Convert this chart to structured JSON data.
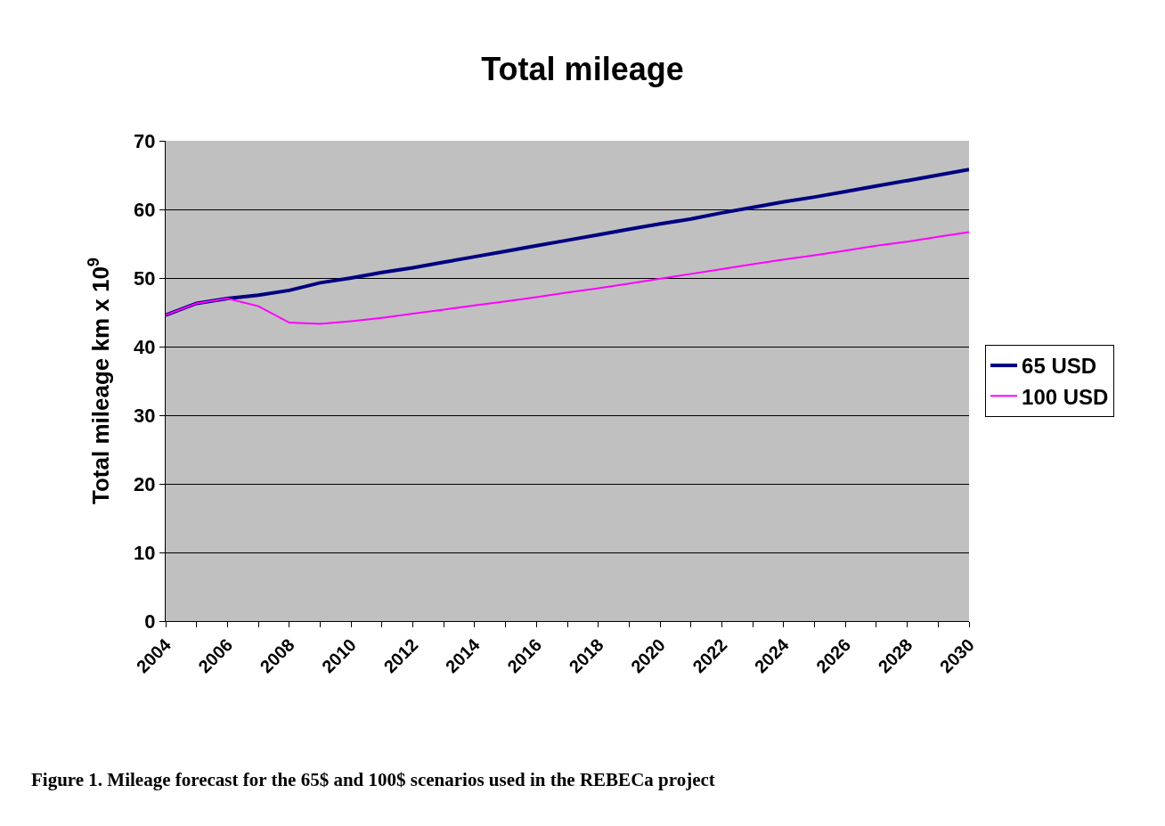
{
  "chart_data": {
    "type": "line",
    "title": "Total mileage",
    "ylabel": "Total mileage km x 10$^{9}$",
    "x": [
      2004,
      2005,
      2006,
      2007,
      2008,
      2009,
      2010,
      2011,
      2012,
      2013,
      2014,
      2015,
      2016,
      2017,
      2018,
      2019,
      2020,
      2021,
      2022,
      2023,
      2024,
      2025,
      2026,
      2027,
      2028,
      2029,
      2030
    ],
    "series": [
      {
        "name": "65 USD",
        "color": "#000080",
        "values": [
          44.6,
          46.3,
          47.0,
          47.5,
          48.2,
          49.3,
          50.0,
          50.8,
          51.5,
          52.3,
          53.1,
          53.9,
          54.7,
          55.5,
          56.3,
          57.1,
          57.9,
          58.6,
          59.5,
          60.3,
          61.1,
          61.8,
          62.6,
          63.4,
          64.2,
          65.0,
          65.8
        ]
      },
      {
        "name": "100 USD",
        "color": "#ff00ff",
        "values": [
          44.6,
          46.3,
          47.0,
          45.9,
          43.5,
          43.3,
          43.7,
          44.2,
          44.8,
          45.4,
          46.0,
          46.6,
          47.2,
          47.9,
          48.5,
          49.2,
          49.9,
          50.6,
          51.3,
          52.0,
          52.7,
          53.3,
          54.0,
          54.7,
          55.3,
          56.0,
          56.7
        ]
      }
    ],
    "xlim": [
      2004,
      2030
    ],
    "xticks": [
      2004,
      {
        "value": 2005,
        "label": null
      },
      2006,
      {
        "value": 2007,
        "label": null
      },
      2008,
      {
        "value": 2009,
        "label": null
      },
      2010,
      {
        "value": 2011,
        "label": null
      },
      2012,
      {
        "value": 2013,
        "label": null
      },
      2014,
      {
        "value": 2015,
        "label": null
      },
      2016,
      {
        "value": 2017,
        "label": null
      },
      2018,
      {
        "value": 2019,
        "label": null
      },
      2020,
      {
        "value": 2021,
        "label": null
      },
      2022,
      {
        "value": 2023,
        "label": null
      },
      2024,
      {
        "value": 2025,
        "label": null
      },
      2026,
      {
        "value": 2027,
        "label": null
      },
      2028,
      {
        "value": 2029,
        "label": null
      },
      2030
    ],
    "ylim": [
      0,
      70
    ],
    "yticks": [
      0,
      10,
      20,
      30,
      40,
      50,
      60,
      70
    ],
    "grid": "y",
    "legend": "right",
    "marker": "none",
    "line_style": "solid",
    "annotations": [
      "Figure 1. Mileage forecast for the 65$ and 100$ scenarios used in the REBECa project"
    ]
  }
}
